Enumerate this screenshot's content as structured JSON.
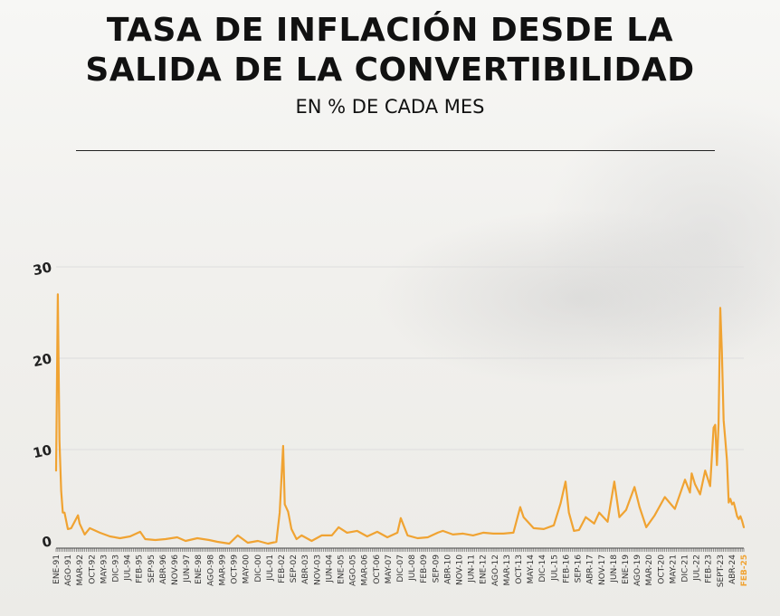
{
  "header": {
    "title_line1": "TASA DE INFLACIÓN DESDE LA",
    "title_line2": "SALIDA DE LA CONVERTIBILIDAD",
    "subtitle": "EN % DE CADA MES"
  },
  "colors": {
    "line": "#f0a332",
    "highlight": "#f0a332",
    "text": "#111111"
  },
  "chart_data": {
    "type": "line",
    "title": "TASA DE INFLACIÓN DESDE LA SALIDA DE LA CONVERTIBILIDAD",
    "subtitle": "EN % DE CADA MES",
    "xlabel": "",
    "ylabel": "",
    "ylim": [
      0,
      30
    ],
    "yticks": [
      0,
      10,
      20,
      30
    ],
    "grid": true,
    "x_start": "1991-01",
    "x_end": "2025-02",
    "tick_labels": [
      "ENE-91",
      "AGO-91",
      "MAR-92",
      "OCT-92",
      "MAY-93",
      "DIC-93",
      "JUL-94",
      "FEB-95",
      "SEP-95",
      "ABR-96",
      "NOV-96",
      "JUN-97",
      "ENE-98",
      "AGO-98",
      "MAR-99",
      "OCT-99",
      "MAY-00",
      "DIC-00",
      "JUL-01",
      "FEB-02",
      "SEP-02",
      "ABR-03",
      "NOV-03",
      "JUN-04",
      "ENE-05",
      "AGO-05",
      "MAR-06",
      "OCT-06",
      "MAY-07",
      "DIC-07",
      "JUL-08",
      "FEB-09",
      "SEP-09",
      "ABR-10",
      "NOV-10",
      "JUN-11",
      "ENE-12",
      "AGO-12",
      "MAR-13",
      "OCT-13",
      "MAY-14",
      "DIC-14",
      "JUL-15",
      "FEB-16",
      "SEP-16",
      "ABR-17",
      "NOV-17",
      "JUN-18",
      "ENE-19",
      "AGO-19",
      "MAR-20",
      "OCT-20",
      "MAY-21",
      "DIC-21",
      "JUL-22",
      "FEB-23",
      "SEPT-23",
      "ABR-24",
      "FEB-25"
    ],
    "highlight_label": "FEB-25",
    "series": [
      {
        "values": [
          {
            "x": "1991-01",
            "y": 7.7
          },
          {
            "x": "1991-02",
            "y": 27.0
          },
          {
            "x": "1991-03",
            "y": 11.0
          },
          {
            "x": "1991-04",
            "y": 5.5
          },
          {
            "x": "1991-05",
            "y": 3.1
          },
          {
            "x": "1991-06",
            "y": 3.1
          },
          {
            "x": "1991-08",
            "y": 1.3
          },
          {
            "x": "1991-10",
            "y": 1.4
          },
          {
            "x": "1992-02",
            "y": 2.8
          },
          {
            "x": "1992-03",
            "y": 1.9
          },
          {
            "x": "1992-06",
            "y": 0.7
          },
          {
            "x": "1992-09",
            "y": 1.4
          },
          {
            "x": "1993-03",
            "y": 0.9
          },
          {
            "x": "1993-09",
            "y": 0.5
          },
          {
            "x": "1994-03",
            "y": 0.3
          },
          {
            "x": "1994-09",
            "y": 0.5
          },
          {
            "x": "1995-03",
            "y": 1.0
          },
          {
            "x": "1995-06",
            "y": 0.2
          },
          {
            "x": "1995-12",
            "y": 0.1
          },
          {
            "x": "1996-06",
            "y": 0.2
          },
          {
            "x": "1997-01",
            "y": 0.4
          },
          {
            "x": "1997-06",
            "y": 0.0
          },
          {
            "x": "1998-01",
            "y": 0.3
          },
          {
            "x": "1998-08",
            "y": 0.1
          },
          {
            "x": "1999-01",
            "y": -0.1
          },
          {
            "x": "1999-08",
            "y": -0.3
          },
          {
            "x": "2000-01",
            "y": 0.6
          },
          {
            "x": "2000-07",
            "y": -0.2
          },
          {
            "x": "2001-01",
            "y": 0.0
          },
          {
            "x": "2001-07",
            "y": -0.3
          },
          {
            "x": "2001-12",
            "y": -0.1
          },
          {
            "x": "2002-02",
            "y": 3.1
          },
          {
            "x": "2002-04",
            "y": 10.4
          },
          {
            "x": "2002-05",
            "y": 4.0
          },
          {
            "x": "2002-07",
            "y": 3.2
          },
          {
            "x": "2002-09",
            "y": 1.3
          },
          {
            "x": "2002-12",
            "y": 0.2
          },
          {
            "x": "2003-03",
            "y": 0.6
          },
          {
            "x": "2003-09",
            "y": 0.0
          },
          {
            "x": "2004-03",
            "y": 0.6
          },
          {
            "x": "2004-09",
            "y": 0.6
          },
          {
            "x": "2005-01",
            "y": 1.5
          },
          {
            "x": "2005-06",
            "y": 0.9
          },
          {
            "x": "2005-12",
            "y": 1.1
          },
          {
            "x": "2006-06",
            "y": 0.5
          },
          {
            "x": "2006-12",
            "y": 1.0
          },
          {
            "x": "2007-06",
            "y": 0.4
          },
          {
            "x": "2007-12",
            "y": 0.9
          },
          {
            "x": "2008-02",
            "y": 2.5
          },
          {
            "x": "2008-06",
            "y": 0.6
          },
          {
            "x": "2008-12",
            "y": 0.3
          },
          {
            "x": "2009-06",
            "y": 0.4
          },
          {
            "x": "2009-12",
            "y": 0.9
          },
          {
            "x": "2010-03",
            "y": 1.1
          },
          {
            "x": "2010-09",
            "y": 0.7
          },
          {
            "x": "2011-03",
            "y": 0.8
          },
          {
            "x": "2011-09",
            "y": 0.6
          },
          {
            "x": "2012-03",
            "y": 0.9
          },
          {
            "x": "2012-09",
            "y": 0.8
          },
          {
            "x": "2013-03",
            "y": 0.8
          },
          {
            "x": "2013-09",
            "y": 0.9
          },
          {
            "x": "2014-01",
            "y": 3.7
          },
          {
            "x": "2014-03",
            "y": 2.6
          },
          {
            "x": "2014-09",
            "y": 1.4
          },
          {
            "x": "2015-03",
            "y": 1.3
          },
          {
            "x": "2015-09",
            "y": 1.7
          },
          {
            "x": "2016-01",
            "y": 4.1
          },
          {
            "x": "2016-04",
            "y": 6.5
          },
          {
            "x": "2016-06",
            "y": 3.1
          },
          {
            "x": "2016-09",
            "y": 1.1
          },
          {
            "x": "2016-12",
            "y": 1.2
          },
          {
            "x": "2017-04",
            "y": 2.6
          },
          {
            "x": "2017-09",
            "y": 1.9
          },
          {
            "x": "2017-12",
            "y": 3.1
          },
          {
            "x": "2018-05",
            "y": 2.1
          },
          {
            "x": "2018-09",
            "y": 6.5
          },
          {
            "x": "2018-12",
            "y": 2.6
          },
          {
            "x": "2019-04",
            "y": 3.4
          },
          {
            "x": "2019-09",
            "y": 5.9
          },
          {
            "x": "2019-12",
            "y": 3.7
          },
          {
            "x": "2020-04",
            "y": 1.5
          },
          {
            "x": "2020-09",
            "y": 2.8
          },
          {
            "x": "2021-03",
            "y": 4.8
          },
          {
            "x": "2021-09",
            "y": 3.5
          },
          {
            "x": "2022-03",
            "y": 6.7
          },
          {
            "x": "2022-06",
            "y": 5.3
          },
          {
            "x": "2022-07",
            "y": 7.4
          },
          {
            "x": "2022-09",
            "y": 6.2
          },
          {
            "x": "2022-12",
            "y": 5.1
          },
          {
            "x": "2023-03",
            "y": 7.7
          },
          {
            "x": "2023-06",
            "y": 6.0
          },
          {
            "x": "2023-08",
            "y": 12.4
          },
          {
            "x": "2023-09",
            "y": 12.7
          },
          {
            "x": "2023-10",
            "y": 8.3
          },
          {
            "x": "2023-11",
            "y": 12.8
          },
          {
            "x": "2023-12",
            "y": 25.5
          },
          {
            "x": "2024-01",
            "y": 20.6
          },
          {
            "x": "2024-02",
            "y": 13.2
          },
          {
            "x": "2024-03",
            "y": 11.0
          },
          {
            "x": "2024-04",
            "y": 8.8
          },
          {
            "x": "2024-05",
            "y": 4.2
          },
          {
            "x": "2024-06",
            "y": 4.6
          },
          {
            "x": "2024-07",
            "y": 4.0
          },
          {
            "x": "2024-08",
            "y": 4.2
          },
          {
            "x": "2024-09",
            "y": 3.5
          },
          {
            "x": "2024-10",
            "y": 2.7
          },
          {
            "x": "2024-11",
            "y": 2.4
          },
          {
            "x": "2024-12",
            "y": 2.7
          },
          {
            "x": "2025-01",
            "y": 2.2
          },
          {
            "x": "2025-02",
            "y": 1.5
          }
        ]
      }
    ]
  }
}
